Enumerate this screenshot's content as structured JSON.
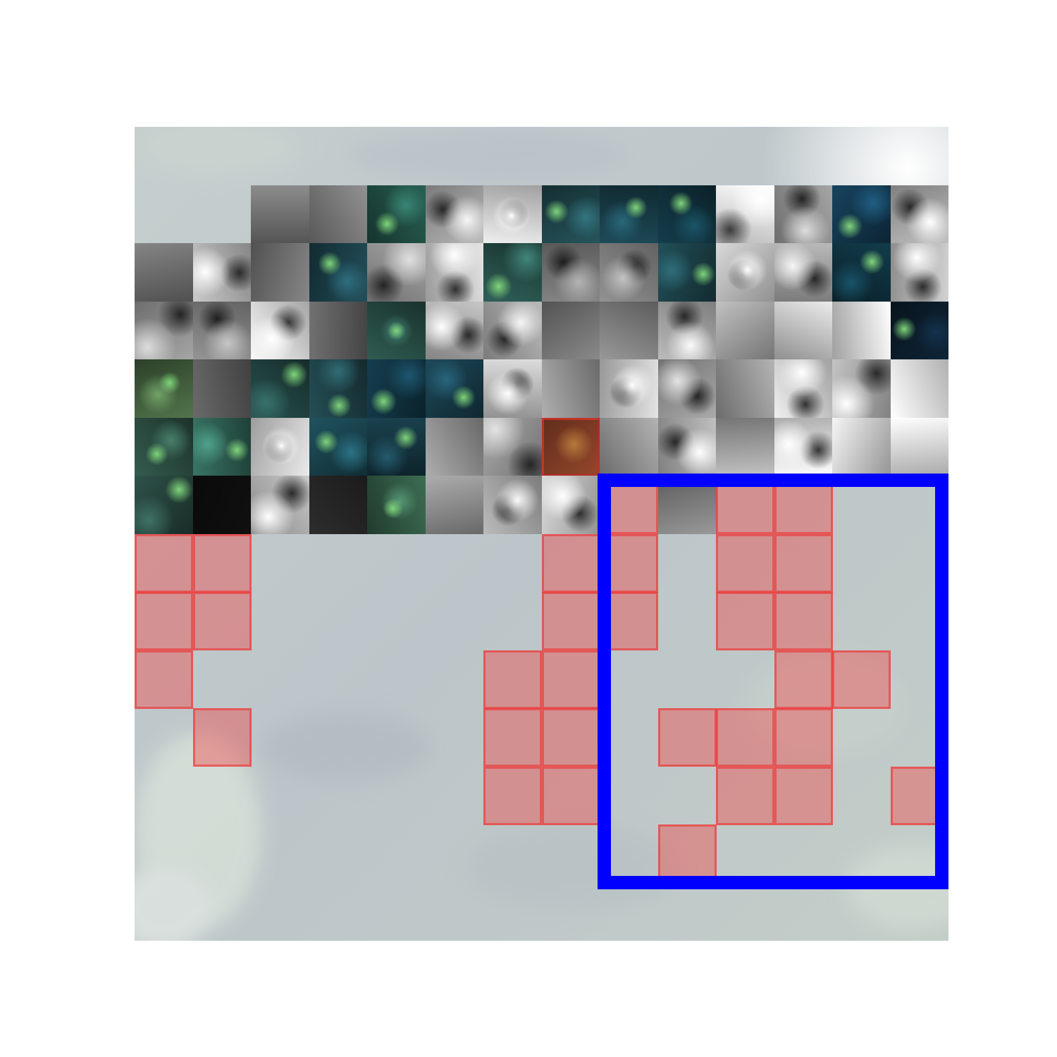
{
  "image": {
    "description_free": true,
    "background_color": "#c3cccc",
    "grid_size": 14,
    "colors": {
      "aerial_light": "#c4cdcd",
      "aerial_dark": "#aeb8bb",
      "teal_dark": "#0f2f38",
      "teal_mid": "#2a5a55",
      "green_bright": "#7fd47a",
      "overlay_red": "#f04646",
      "roi_blue": "#0000ff",
      "brown_patch": "#7b3a24"
    }
  },
  "patches": [
    {
      "r": 1,
      "c": 2,
      "kind": "gray",
      "tone": "#707070"
    },
    {
      "r": 1,
      "c": 3,
      "kind": "gray",
      "tone": "#757575"
    },
    {
      "r": 1,
      "c": 4,
      "kind": "teal",
      "tone": "#1f4a40"
    },
    {
      "r": 1,
      "c": 5,
      "kind": "bw",
      "tone": "#9a9a9a"
    },
    {
      "r": 1,
      "c": 6,
      "kind": "bw",
      "tone": "#c8c8c8"
    },
    {
      "r": 1,
      "c": 7,
      "kind": "teal",
      "tone": "#1d4147"
    },
    {
      "r": 1,
      "c": 8,
      "kind": "teal",
      "tone": "#173a44"
    },
    {
      "r": 1,
      "c": 9,
      "kind": "teal",
      "tone": "#0f2f3a"
    },
    {
      "r": 1,
      "c": 10,
      "kind": "bw",
      "tone": "#e6e6e6"
    },
    {
      "r": 1,
      "c": 11,
      "kind": "bw",
      "tone": "#8a8a8a"
    },
    {
      "r": 1,
      "c": 12,
      "kind": "teal",
      "tone": "#123449"
    },
    {
      "r": 1,
      "c": 13,
      "kind": "bw",
      "tone": "#a0a0a0"
    },
    {
      "r": 2,
      "c": 0,
      "kind": "gray",
      "tone": "#6a6a6a"
    },
    {
      "r": 2,
      "c": 1,
      "kind": "bw",
      "tone": "#a8a8a8"
    },
    {
      "r": 2,
      "c": 2,
      "kind": "gray",
      "tone": "#6c6c6c"
    },
    {
      "r": 2,
      "c": 3,
      "kind": "teal",
      "tone": "#1a3d46"
    },
    {
      "r": 2,
      "c": 4,
      "kind": "bw",
      "tone": "#8c8c8c"
    },
    {
      "r": 2,
      "c": 5,
      "kind": "bw",
      "tone": "#c0c0c0"
    },
    {
      "r": 2,
      "c": 6,
      "kind": "teal",
      "tone": "#244a44"
    },
    {
      "r": 2,
      "c": 7,
      "kind": "bw",
      "tone": "#707070"
    },
    {
      "r": 2,
      "c": 8,
      "kind": "bw",
      "tone": "#7a7a7a"
    },
    {
      "r": 2,
      "c": 9,
      "kind": "teal",
      "tone": "#1a3d44"
    },
    {
      "r": 2,
      "c": 10,
      "kind": "bw",
      "tone": "#b5b5b5"
    },
    {
      "r": 2,
      "c": 11,
      "kind": "bw",
      "tone": "#9a9a9a"
    },
    {
      "r": 2,
      "c": 12,
      "kind": "teal",
      "tone": "#0e2e3a"
    },
    {
      "r": 2,
      "c": 13,
      "kind": "bw",
      "tone": "#b0b0b0"
    },
    {
      "r": 3,
      "c": 0,
      "kind": "bw",
      "tone": "#8a8a8a"
    },
    {
      "r": 3,
      "c": 1,
      "kind": "bw",
      "tone": "#7c7c7c"
    },
    {
      "r": 3,
      "c": 2,
      "kind": "bw",
      "tone": "#d0d0d0"
    },
    {
      "r": 3,
      "c": 3,
      "kind": "gray",
      "tone": "#5a5a5a"
    },
    {
      "r": 3,
      "c": 4,
      "kind": "teal",
      "tone": "#24473f"
    },
    {
      "r": 3,
      "c": 5,
      "kind": "bw",
      "tone": "#a5a5a5"
    },
    {
      "r": 3,
      "c": 6,
      "kind": "bw",
      "tone": "#9a9a9a"
    },
    {
      "r": 3,
      "c": 7,
      "kind": "gray",
      "tone": "#6e6e6e"
    },
    {
      "r": 3,
      "c": 8,
      "kind": "gray",
      "tone": "#7a7a7a"
    },
    {
      "r": 3,
      "c": 9,
      "kind": "bw",
      "tone": "#9d9d9d"
    },
    {
      "r": 3,
      "c": 10,
      "kind": "gray",
      "tone": "#9a9a9a"
    },
    {
      "r": 3,
      "c": 11,
      "kind": "gray",
      "tone": "#bdbdbd"
    },
    {
      "r": 3,
      "c": 12,
      "kind": "gray",
      "tone": "#d5d5d5"
    },
    {
      "r": 3,
      "c": 13,
      "kind": "teal",
      "tone": "#0b1c2a"
    },
    {
      "r": 4,
      "c": 0,
      "kind": "teal",
      "tone": "#3f5a3a"
    },
    {
      "r": 4,
      "c": 1,
      "kind": "gray",
      "tone": "#555555"
    },
    {
      "r": 4,
      "c": 2,
      "kind": "teal",
      "tone": "#1f3f3c"
    },
    {
      "r": 4,
      "c": 3,
      "kind": "teal",
      "tone": "#1c3c41"
    },
    {
      "r": 4,
      "c": 4,
      "kind": "teal",
      "tone": "#10303d"
    },
    {
      "r": 4,
      "c": 5,
      "kind": "teal",
      "tone": "#163845"
    },
    {
      "r": 4,
      "c": 6,
      "kind": "bw",
      "tone": "#b7b7b7"
    },
    {
      "r": 4,
      "c": 7,
      "kind": "gray",
      "tone": "#8c8c8c"
    },
    {
      "r": 4,
      "c": 8,
      "kind": "bw",
      "tone": "#bebebe"
    },
    {
      "r": 4,
      "c": 9,
      "kind": "bw",
      "tone": "#8e8e8e"
    },
    {
      "r": 4,
      "c": 10,
      "kind": "gray",
      "tone": "#909090"
    },
    {
      "r": 4,
      "c": 11,
      "kind": "bw",
      "tone": "#c8c8c8"
    },
    {
      "r": 4,
      "c": 12,
      "kind": "bw",
      "tone": "#a3a3a3"
    },
    {
      "r": 4,
      "c": 13,
      "kind": "gray",
      "tone": "#eaeaea"
    },
    {
      "r": 5,
      "c": 0,
      "kind": "teal",
      "tone": "#28473c"
    },
    {
      "r": 5,
      "c": 1,
      "kind": "teal",
      "tone": "#2c5a4e"
    },
    {
      "r": 5,
      "c": 2,
      "kind": "bw",
      "tone": "#c4c4c4"
    },
    {
      "r": 5,
      "c": 3,
      "kind": "teal",
      "tone": "#18404a"
    },
    {
      "r": 5,
      "c": 4,
      "kind": "teal",
      "tone": "#14323c"
    },
    {
      "r": 5,
      "c": 5,
      "kind": "gray",
      "tone": "#8a8a8a"
    },
    {
      "r": 5,
      "c": 6,
      "kind": "bw",
      "tone": "#8e8e8e"
    },
    {
      "r": 5,
      "c": 7,
      "kind": "brown",
      "tone": "#7b3a24"
    },
    {
      "r": 5,
      "c": 8,
      "kind": "gray",
      "tone": "#8f8f8f"
    },
    {
      "r": 5,
      "c": 9,
      "kind": "bw",
      "tone": "#a0a0a0"
    },
    {
      "r": 5,
      "c": 10,
      "kind": "gray",
      "tone": "#9c9c9c"
    },
    {
      "r": 5,
      "c": 11,
      "kind": "bw",
      "tone": "#d8d8d8"
    },
    {
      "r": 5,
      "c": 12,
      "kind": "gray",
      "tone": "#c5c5c5"
    },
    {
      "r": 5,
      "c": 13,
      "kind": "gray",
      "tone": "#e0e0e0"
    },
    {
      "r": 6,
      "c": 0,
      "kind": "teal",
      "tone": "#233f38"
    },
    {
      "r": 6,
      "c": 1,
      "kind": "gray",
      "tone": "#0d0d0d"
    },
    {
      "r": 6,
      "c": 2,
      "kind": "bw",
      "tone": "#a9a9a9"
    },
    {
      "r": 6,
      "c": 3,
      "kind": "gray",
      "tone": "#242424"
    },
    {
      "r": 6,
      "c": 4,
      "kind": "teal",
      "tone": "#2f5440"
    },
    {
      "r": 6,
      "c": 5,
      "kind": "gray",
      "tone": "#8a8a8a"
    },
    {
      "r": 6,
      "c": 6,
      "kind": "bw",
      "tone": "#9c9c9c"
    },
    {
      "r": 6,
      "c": 7,
      "kind": "bw",
      "tone": "#b6b6b6"
    },
    {
      "r": 6,
      "c": 9,
      "kind": "gray",
      "tone": "#7a7a7a"
    }
  ],
  "red_cells": [
    {
      "r": 6,
      "c": 8
    },
    {
      "r": 6,
      "c": 10
    },
    {
      "r": 6,
      "c": 11
    },
    {
      "r": 7,
      "c": 0
    },
    {
      "r": 7,
      "c": 1
    },
    {
      "r": 7,
      "c": 7
    },
    {
      "r": 7,
      "c": 8
    },
    {
      "r": 7,
      "c": 10
    },
    {
      "r": 7,
      "c": 11
    },
    {
      "r": 8,
      "c": 0
    },
    {
      "r": 8,
      "c": 1
    },
    {
      "r": 8,
      "c": 7
    },
    {
      "r": 8,
      "c": 8
    },
    {
      "r": 8,
      "c": 10
    },
    {
      "r": 8,
      "c": 11
    },
    {
      "r": 9,
      "c": 0
    },
    {
      "r": 9,
      "c": 6
    },
    {
      "r": 9,
      "c": 7
    },
    {
      "r": 9,
      "c": 11
    },
    {
      "r": 9,
      "c": 12
    },
    {
      "r": 10,
      "c": 1
    },
    {
      "r": 10,
      "c": 6
    },
    {
      "r": 10,
      "c": 7
    },
    {
      "r": 10,
      "c": 9
    },
    {
      "r": 10,
      "c": 10
    },
    {
      "r": 10,
      "c": 11
    },
    {
      "r": 11,
      "c": 6
    },
    {
      "r": 11,
      "c": 7
    },
    {
      "r": 11,
      "c": 10
    },
    {
      "r": 11,
      "c": 11
    },
    {
      "r": 11,
      "c": 13
    },
    {
      "r": 12,
      "c": 9
    }
  ],
  "roi_box": {
    "row_start": 6,
    "col_start": 8,
    "row_end": 13,
    "col_end": 14,
    "color": "#0000ff"
  }
}
